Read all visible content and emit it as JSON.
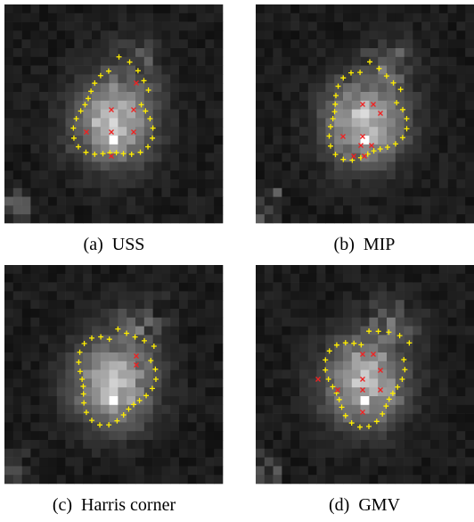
{
  "panels": [
    {
      "caption": "(a)  USS"
    },
    {
      "caption": "(b)  MIP"
    },
    {
      "caption": "(c)  Harris corner"
    },
    {
      "caption": "(d)  GMV"
    }
  ]
}
